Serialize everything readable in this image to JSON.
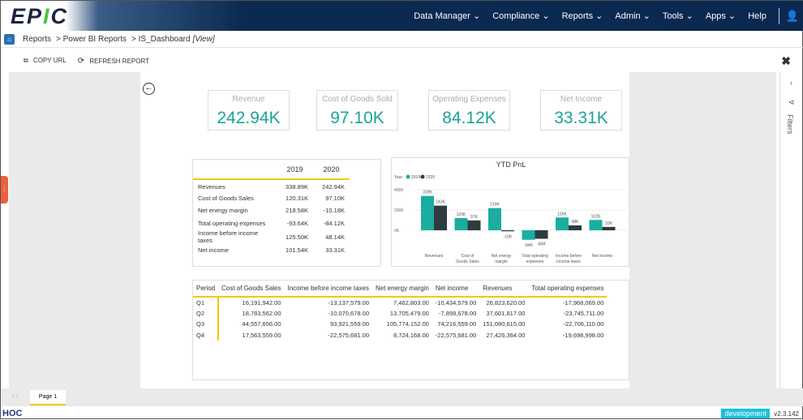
{
  "header": {
    "logo": "EPIC",
    "nav": [
      "Data Manager",
      "Compliance",
      "Reports",
      "Admin",
      "Tools",
      "Apps"
    ],
    "help": "Help"
  },
  "breadcrumb": {
    "items": [
      "Reports",
      "> Power BI Reports",
      "> IS_Dashboard"
    ],
    "mode": "[View]"
  },
  "toolbar": {
    "copy_url": "COPY URL",
    "refresh": "REFRESH REPORT"
  },
  "kpis": [
    {
      "title": "Revenue",
      "value": "242.94K"
    },
    {
      "title": "Cost of Goods Sold",
      "value": "97.10K"
    },
    {
      "title": "Operating Expenses",
      "value": "84.12K"
    },
    {
      "title": "Net Income",
      "value": "33.31K"
    }
  ],
  "summary_table": {
    "columns": [
      "",
      "2019",
      "2020"
    ],
    "rows": [
      [
        "Revenues",
        "338.89K",
        "242.94K"
      ],
      [
        "Cost of Goods Sales",
        "120.31K",
        "97.10K"
      ],
      [
        "Net energy margin",
        "218.58K",
        "-10.18K"
      ],
      [
        "Total operating expenses",
        "-93.64K",
        "-84.12K"
      ],
      [
        "Income before income taxes",
        "125.50K",
        "48.14K"
      ],
      [
        "Net income",
        "101.54K",
        "33.31K"
      ]
    ]
  },
  "chart_data": {
    "type": "bar",
    "title": "YTD PnL",
    "legend_title": "Year",
    "legend_position": "top-left",
    "categories": [
      "Revenues",
      "Cost of Goods Sales",
      "Net energy margin",
      "Total operating expenses",
      "Income before income taxes",
      "Net income"
    ],
    "series": [
      {
        "name": "2019",
        "color": "#1aada0",
        "values": [
          339,
          120,
          219,
          -94,
          126,
          102
        ],
        "labels": [
          "339K",
          "120K",
          "219K",
          "-94K",
          "126K",
          "102K"
        ]
      },
      {
        "name": "2020",
        "color": "#2f3b3f",
        "values": [
          243,
          97,
          -10,
          -84,
          48,
          33
        ],
        "labels": [
          "243K",
          "97K",
          "-10K",
          "-84K",
          "48K",
          "33K"
        ]
      }
    ],
    "yticks": [
      "0K",
      "200K",
      "400K"
    ],
    "ytick_values": [
      0,
      200,
      400
    ],
    "ylim": [
      -100,
      420
    ]
  },
  "detail_table": {
    "columns": [
      "Period",
      "Cost of Goods Sales",
      "Income before income taxes",
      "Net energy margin",
      "Net income",
      "Revenues",
      "Total operating expenses"
    ],
    "rows": [
      [
        "Q1",
        "16,191,942.00",
        "-13,137,579.00",
        "7,462,803.00",
        "-10,434,579.00",
        "26,823,620.00",
        "-17,968,069.00"
      ],
      [
        "Q2",
        "18,783,562.00",
        "-10,070,678.00",
        "13,705,479.00",
        "-7,898,678.00",
        "37,601,817.00",
        "-23,745,711.00"
      ],
      [
        "Q3",
        "44,557,656.00",
        "93,921,559.00",
        "105,774,152.00",
        "74,216,559.00",
        "151,090,615.00",
        "-22,706,110.00"
      ],
      [
        "Q4",
        "17,563,559.00",
        "-22,575,681.00",
        "8,724,168.00",
        "-22,575,681.00",
        "27,426,364.00",
        "-19,698,998.00"
      ]
    ]
  },
  "filters": {
    "label": "Filters"
  },
  "pages": {
    "tab": "Page 1"
  },
  "footer": {
    "brand": "HOC",
    "env": "development",
    "version": "v2.3.142"
  }
}
